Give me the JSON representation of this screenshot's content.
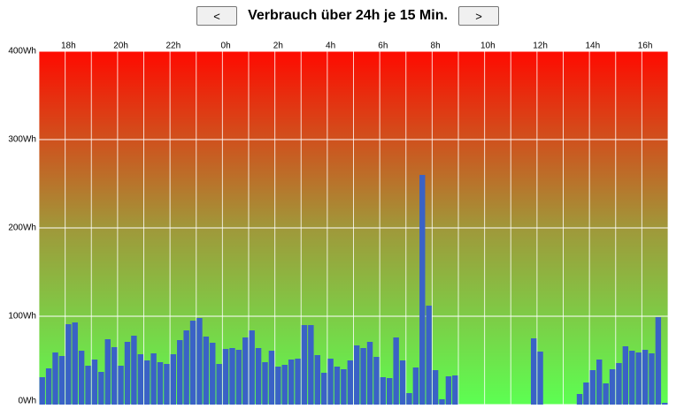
{
  "nav": {
    "prev": "<",
    "next": ">"
  },
  "chart_data": {
    "type": "bar",
    "title": "Verbrauch über 24h je 15 Min.",
    "categories": [
      null,
      null,
      null,
      null,
      "18h",
      null,
      null,
      null,
      null,
      null,
      null,
      null,
      "20h",
      null,
      null,
      null,
      null,
      null,
      null,
      null,
      "22h",
      null,
      null,
      null,
      null,
      null,
      null,
      null,
      "0h",
      null,
      null,
      null,
      null,
      null,
      null,
      null,
      "2h",
      null,
      null,
      null,
      null,
      null,
      null,
      null,
      "4h",
      null,
      null,
      null,
      null,
      null,
      null,
      null,
      "6h",
      null,
      null,
      null,
      null,
      null,
      null,
      null,
      "8h",
      null,
      null,
      null,
      null,
      null,
      null,
      null,
      "10h",
      null,
      null,
      null,
      null,
      null,
      null,
      null,
      "12h",
      null,
      null,
      null,
      null,
      null,
      null,
      null,
      "14h",
      null,
      null,
      null,
      null,
      null,
      null,
      null,
      "16h",
      null,
      null,
      null
    ],
    "values": [
      31,
      41,
      59,
      55,
      91,
      93,
      61,
      44,
      51,
      37,
      74,
      65,
      44,
      71,
      78,
      57,
      50,
      58,
      48,
      46,
      57,
      73,
      84,
      95,
      98,
      77,
      70,
      46,
      63,
      64,
      62,
      76,
      84,
      64,
      48,
      61,
      43,
      45,
      51,
      52,
      90,
      90,
      56,
      36,
      52,
      43,
      40,
      50,
      67,
      64,
      71,
      54,
      31,
      30,
      76,
      50,
      13,
      42,
      260,
      112,
      39,
      6,
      32,
      33,
      0,
      0,
      0,
      0,
      0,
      0,
      0,
      0,
      0,
      0,
      0,
      75,
      60,
      0,
      0,
      0,
      0,
      0,
      12,
      25,
      39,
      51,
      24,
      40,
      47,
      66,
      61,
      59,
      62,
      58,
      99,
      2
    ],
    "color": "#3a62c6",
    "ylim": [
      0,
      400
    ],
    "yticks": [
      {
        "value": 0,
        "label": "0Wh"
      },
      {
        "value": 100,
        "label": "100Wh"
      },
      {
        "value": 200,
        "label": "200Wh"
      },
      {
        "value": 300,
        "label": "300Wh"
      },
      {
        "value": 400,
        "label": "400Wh"
      }
    ],
    "grid": true
  }
}
